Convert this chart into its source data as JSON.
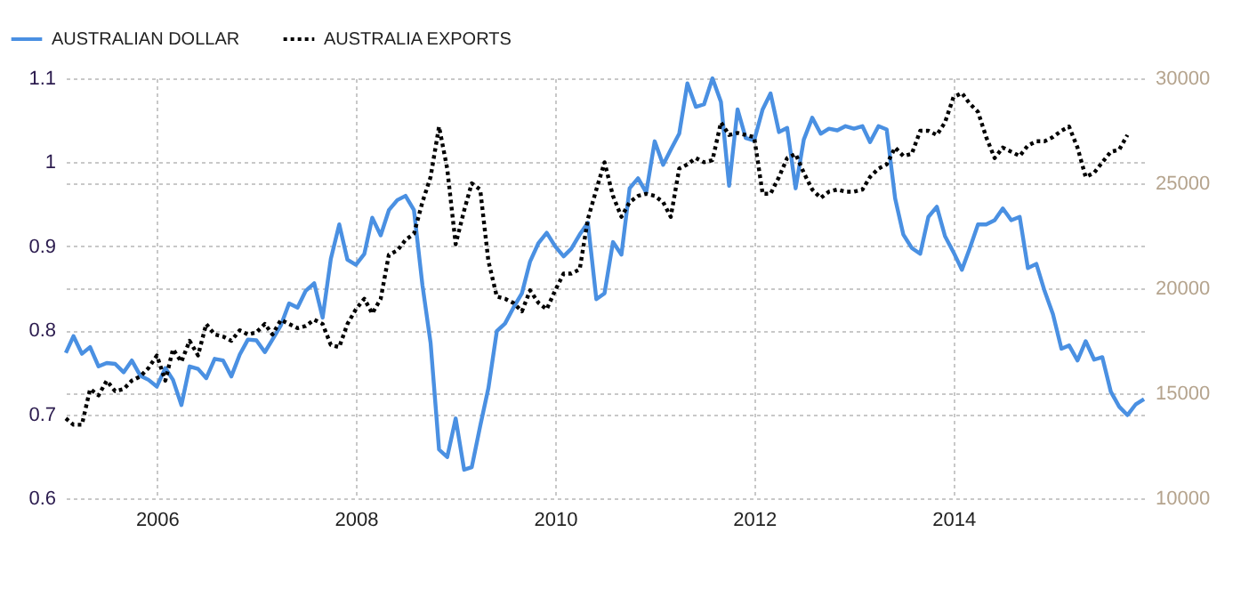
{
  "chart_data": {
    "type": "line",
    "legend": "top left",
    "grid": true,
    "xlim": [
      "2005-02",
      "2015-12"
    ],
    "xticks": [
      "2006",
      "2008",
      "2010",
      "2012",
      "2014"
    ],
    "ylim": [
      0.6,
      1.1
    ],
    "yticks": [
      0.6,
      0.7,
      0.8,
      0.9,
      1,
      1.1
    ],
    "y2lim": [
      10000,
      30000
    ],
    "y2ticks": [
      10000,
      15000,
      20000,
      25000,
      30000
    ],
    "series": [
      {
        "name": "AUSTRALIAN DOLLAR",
        "color": "#4a90e2",
        "line_style": "solid",
        "axis": "y",
        "x": [
          "2005-02",
          "2005-03",
          "2005-04",
          "2005-05",
          "2005-06",
          "2005-07",
          "2005-08",
          "2005-09",
          "2005-10",
          "2005-11",
          "2005-12",
          "2006-01",
          "2006-02",
          "2006-03",
          "2006-04",
          "2006-05",
          "2006-06",
          "2006-07",
          "2006-08",
          "2006-09",
          "2006-10",
          "2006-11",
          "2006-12",
          "2007-01",
          "2007-02",
          "2007-03",
          "2007-04",
          "2007-05",
          "2007-06",
          "2007-07",
          "2007-08",
          "2007-09",
          "2007-10",
          "2007-11",
          "2007-12",
          "2008-01",
          "2008-02",
          "2008-03",
          "2008-04",
          "2008-05",
          "2008-06",
          "2008-07",
          "2008-08",
          "2008-09",
          "2008-10",
          "2008-11",
          "2008-12",
          "2009-01",
          "2009-02",
          "2009-03",
          "2009-04",
          "2009-05",
          "2009-06",
          "2009-07",
          "2009-08",
          "2009-09",
          "2009-10",
          "2009-11",
          "2009-12",
          "2010-01",
          "2010-02",
          "2010-03",
          "2010-04",
          "2010-05",
          "2010-06",
          "2010-07",
          "2010-08",
          "2010-09",
          "2010-10",
          "2010-11",
          "2010-12",
          "2011-01",
          "2011-02",
          "2011-03",
          "2011-04",
          "2011-05",
          "2011-06",
          "2011-07",
          "2011-08",
          "2011-09",
          "2011-10",
          "2011-11",
          "2011-12",
          "2012-01",
          "2012-02",
          "2012-03",
          "2012-04",
          "2012-05",
          "2012-06",
          "2012-07",
          "2012-08",
          "2012-09",
          "2012-10",
          "2012-11",
          "2012-12",
          "2013-01",
          "2013-02",
          "2013-03",
          "2013-04",
          "2013-05",
          "2013-06",
          "2013-07",
          "2013-08",
          "2013-09",
          "2013-10",
          "2013-11",
          "2013-12",
          "2014-01",
          "2014-02",
          "2014-03",
          "2014-04",
          "2014-05",
          "2014-06",
          "2014-07",
          "2014-08",
          "2014-09",
          "2014-10",
          "2014-11",
          "2014-12",
          "2015-01",
          "2015-02",
          "2015-03",
          "2015-04",
          "2015-05",
          "2015-06",
          "2015-07",
          "2015-08",
          "2015-09",
          "2015-10",
          "2015-11",
          "2015-12"
        ],
        "values": [
          0.773,
          0.793,
          0.772,
          0.78,
          0.757,
          0.761,
          0.76,
          0.75,
          0.764,
          0.746,
          0.741,
          0.733,
          0.755,
          0.741,
          0.711,
          0.757,
          0.754,
          0.743,
          0.766,
          0.764,
          0.745,
          0.771,
          0.789,
          0.788,
          0.774,
          0.789,
          0.806,
          0.832,
          0.827,
          0.847,
          0.856,
          0.815,
          0.885,
          0.926,
          0.884,
          0.878,
          0.891,
          0.934,
          0.913,
          0.943,
          0.955,
          0.96,
          0.943,
          0.854,
          0.785,
          0.658,
          0.649,
          0.695,
          0.634,
          0.637,
          0.686,
          0.731,
          0.799,
          0.808,
          0.827,
          0.844,
          0.882,
          0.904,
          0.916,
          0.9,
          0.888,
          0.897,
          0.914,
          0.928,
          0.837,
          0.844,
          0.905,
          0.89,
          0.969,
          0.981,
          0.964,
          1.025,
          0.997,
          1.015,
          1.034,
          1.094,
          1.066,
          1.069,
          1.1,
          1.072,
          0.972,
          1.063,
          1.029,
          1.026,
          1.063,
          1.082,
          1.036,
          1.041,
          0.969,
          1.027,
          1.053,
          1.034,
          1.04,
          1.038,
          1.043,
          1.04,
          1.043,
          1.024,
          1.043,
          1.039,
          0.957,
          0.914,
          0.898,
          0.891,
          0.935,
          0.947,
          0.912,
          0.893,
          0.872,
          0.897,
          0.926,
          0.926,
          0.931,
          0.945,
          0.931,
          0.935,
          0.874,
          0.879,
          0.847,
          0.819,
          0.778,
          0.782,
          0.764,
          0.787,
          0.765,
          0.768,
          0.727,
          0.709,
          0.699,
          0.712,
          0.718
        ]
      },
      {
        "name": "AUSTRALIA EXPORTS",
        "color": "#000000",
        "line_style": "dotted",
        "axis": "y2",
        "x": [
          "2005-02",
          "2005-03",
          "2005-04",
          "2005-05",
          "2005-06",
          "2005-07",
          "2005-08",
          "2005-09",
          "2005-10",
          "2005-11",
          "2005-12",
          "2006-01",
          "2006-02",
          "2006-03",
          "2006-04",
          "2006-05",
          "2006-06",
          "2006-07",
          "2006-08",
          "2006-09",
          "2006-10",
          "2006-11",
          "2006-12",
          "2007-01",
          "2007-02",
          "2007-03",
          "2007-04",
          "2007-05",
          "2007-06",
          "2007-07",
          "2007-08",
          "2007-09",
          "2007-10",
          "2007-11",
          "2007-12",
          "2008-01",
          "2008-02",
          "2008-03",
          "2008-04",
          "2008-05",
          "2008-06",
          "2008-07",
          "2008-08",
          "2008-09",
          "2008-10",
          "2008-11",
          "2008-12",
          "2009-01",
          "2009-02",
          "2009-03",
          "2009-04",
          "2009-05",
          "2009-06",
          "2009-07",
          "2009-08",
          "2009-09",
          "2009-10",
          "2009-11",
          "2009-12",
          "2010-01",
          "2010-02",
          "2010-03",
          "2010-04",
          "2010-05",
          "2010-06",
          "2010-07",
          "2010-08",
          "2010-09",
          "2010-10",
          "2010-11",
          "2010-12",
          "2011-01",
          "2011-02",
          "2011-03",
          "2011-04",
          "2011-05",
          "2011-06",
          "2011-07",
          "2011-08",
          "2011-09",
          "2011-10",
          "2011-11",
          "2011-12",
          "2012-01",
          "2012-02",
          "2012-03",
          "2012-04",
          "2012-05",
          "2012-06",
          "2012-07",
          "2012-08",
          "2012-09",
          "2012-10",
          "2012-11",
          "2012-12",
          "2013-01",
          "2013-02",
          "2013-03",
          "2013-04",
          "2013-05",
          "2013-06",
          "2013-07",
          "2013-08",
          "2013-09",
          "2013-10",
          "2013-11",
          "2013-12",
          "2014-01",
          "2014-02",
          "2014-03",
          "2014-04",
          "2014-05",
          "2014-06",
          "2014-07",
          "2014-08",
          "2014-09",
          "2014-10",
          "2014-11",
          "2014-12",
          "2015-01",
          "2015-02",
          "2015-03",
          "2015-04",
          "2015-05",
          "2015-06",
          "2015-07",
          "2015-08",
          "2015-09",
          "2015-10"
        ],
        "values": [
          13800,
          13500,
          13500,
          15200,
          14900,
          15600,
          15100,
          15200,
          15600,
          15800,
          16200,
          16800,
          15600,
          17100,
          16500,
          17500,
          16800,
          18300,
          17800,
          17700,
          17500,
          18000,
          17800,
          17900,
          18300,
          17800,
          18500,
          18300,
          18100,
          18200,
          18500,
          18300,
          17300,
          17200,
          18300,
          19000,
          19500,
          18800,
          19500,
          21600,
          21800,
          22300,
          22600,
          24100,
          25300,
          27700,
          25700,
          22100,
          23700,
          25000,
          24700,
          21300,
          19600,
          19500,
          19300,
          18900,
          19900,
          19300,
          19000,
          19900,
          20700,
          20700,
          20900,
          23300,
          24700,
          26000,
          24400,
          23400,
          24100,
          24400,
          24500,
          24400,
          24100,
          23400,
          25700,
          25900,
          26200,
          26000,
          26100,
          27900,
          27300,
          27400,
          27300,
          27200,
          24500,
          24500,
          25300,
          26200,
          26400,
          25500,
          24700,
          24300,
          24600,
          24700,
          24600,
          24600,
          24700,
          25300,
          25700,
          25900,
          26700,
          26300,
          26400,
          27500,
          27500,
          27300,
          27900,
          29100,
          29300,
          28800,
          28400,
          27200,
          26200,
          26700,
          26500,
          26300,
          26800,
          27000,
          27000,
          27200,
          27500,
          27700,
          26700,
          25300,
          25500,
          26000,
          26500,
          26600,
          27300
        ]
      }
    ]
  }
}
